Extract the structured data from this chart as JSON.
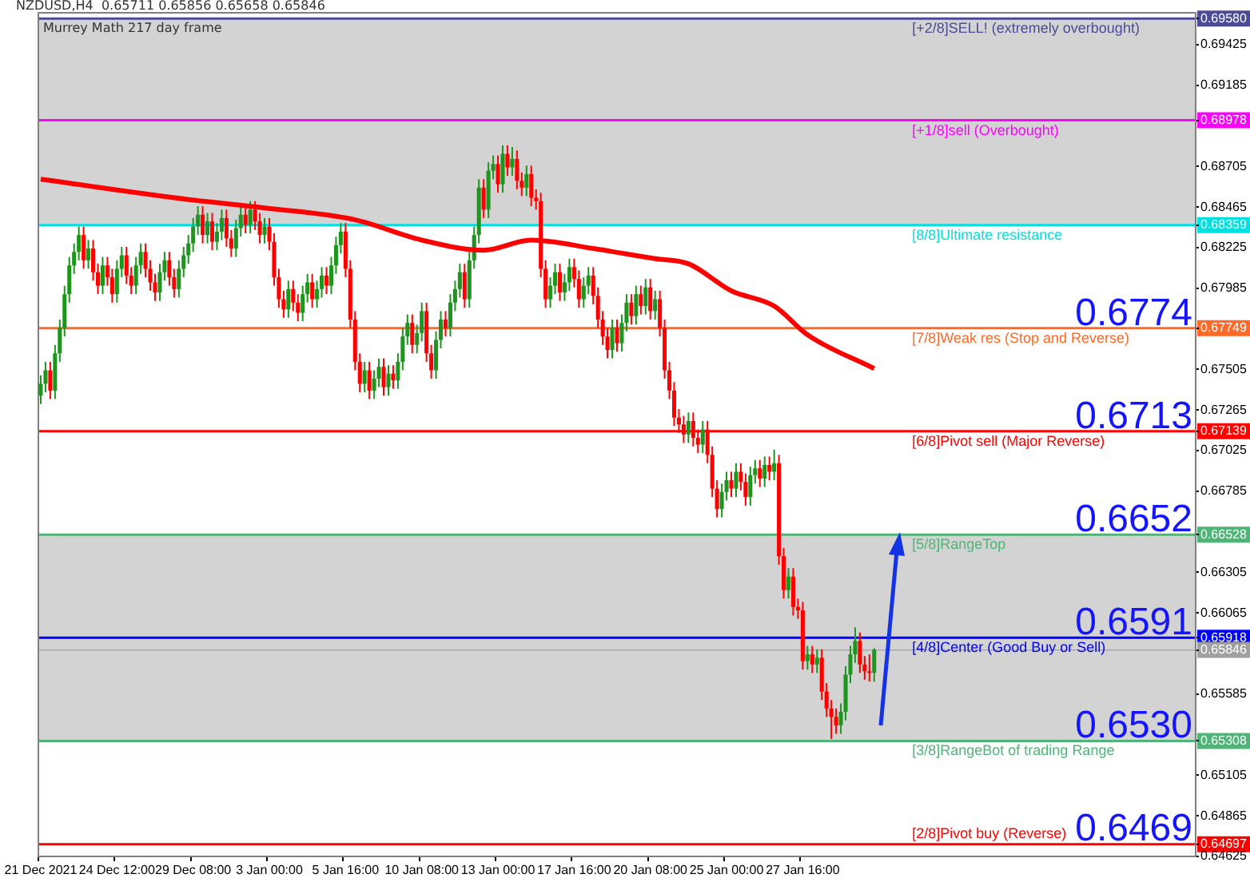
{
  "chart_data": {
    "type": "candlestick",
    "title": "NZDUSD,H4  0.65711 0.65856 0.65658 0.65846",
    "subtitle": "Murrey Math 217 day frame",
    "categories": [
      "21 Dec 2021",
      null,
      null,
      null,
      null,
      null,
      null,
      null,
      null,
      null,
      null,
      null,
      null,
      null,
      null,
      null,
      "24 Dec 12:00",
      null,
      null,
      null,
      null,
      null,
      null,
      null,
      null,
      null,
      null,
      null,
      null,
      null,
      null,
      null,
      "29 Dec 08:00",
      null,
      null,
      null,
      null,
      null,
      null,
      null,
      null,
      null,
      null,
      null,
      null,
      null,
      null,
      null,
      "3 Jan 00:00",
      null,
      null,
      null,
      null,
      null,
      null,
      null,
      null,
      null,
      null,
      null,
      null,
      null,
      null,
      null,
      "5 Jan 16:00",
      null,
      null,
      null,
      null,
      null,
      null,
      null,
      null,
      null,
      null,
      null,
      null,
      null,
      null,
      null,
      "10 Jan 08:00",
      null,
      null,
      null,
      null,
      null,
      null,
      null,
      null,
      null,
      null,
      null,
      null,
      null,
      null,
      null,
      "13 Jan 00:00",
      null,
      null,
      null,
      null,
      null,
      null,
      null,
      null,
      null,
      null,
      null,
      null,
      null,
      null,
      null,
      "17 Jan 16:00",
      null,
      null,
      null,
      null,
      null,
      null,
      null,
      null,
      null,
      null,
      null,
      null,
      null,
      null,
      null,
      "20 Jan 08:00",
      null,
      null,
      null,
      null,
      null,
      null,
      null,
      null,
      null,
      null,
      null,
      null,
      null,
      null,
      null,
      "25 Jan 00:00",
      null,
      null,
      null,
      null,
      null,
      null,
      null,
      null,
      null,
      null,
      null,
      null,
      null,
      null,
      null,
      "27 Jan 16:00",
      null,
      null,
      null,
      null,
      null,
      null,
      null,
      null,
      null,
      null,
      null,
      null,
      null,
      null,
      null,
      null,
      null,
      null,
      null,
      null,
      null,
      null,
      null,
      null,
      null,
      null,
      null,
      null,
      null,
      null,
      null,
      null,
      null,
      null,
      null,
      null,
      null,
      null,
      null,
      null,
      null,
      null,
      null,
      null,
      null,
      null,
      null,
      null,
      null,
      null,
      null,
      null,
      null,
      null,
      null,
      null,
      null,
      null,
      null,
      null,
      null,
      null,
      null,
      null,
      null,
      null,
      null,
      null,
      null,
      null,
      null,
      null,
      null,
      null,
      null,
      null,
      null,
      null,
      null,
      null,
      null,
      null
    ],
    "colors": [
      "#1e961e",
      "#1e961e",
      "#ff0000",
      "#1e961e",
      "#1e961e",
      "#1e961e",
      "#1e961e",
      "#1e961e",
      "#1e961e",
      "#ff0000",
      "#1e961e",
      "#ff0000",
      "#ff0000",
      "#1e961e",
      "#ff0000",
      "#ff0000",
      "#1e961e",
      "#1e961e",
      "#ff0000",
      "#ff0000",
      "#1e961e",
      "#1e961e",
      "#ff0000",
      "#ff0000",
      "#ff0000",
      "#1e961e",
      "#1e961e",
      "#ff0000",
      "#ff0000",
      "#1e961e",
      "#1e961e",
      "#1e961e",
      "#1e961e",
      "#1e961e",
      "#ff0000",
      "#1e961e",
      "#ff0000",
      "#1e961e",
      "#1e961e",
      "#ff0000",
      "#ff0000",
      "#1e961e",
      "#1e961e",
      "#ff0000",
      "#1e961e",
      "#ff0000",
      "#ff0000",
      "#1e961e",
      "#ff0000",
      "#ff0000",
      "#ff0000",
      "#ff0000",
      "#1e961e",
      "#ff0000",
      "#ff0000",
      "#1e961e",
      "#1e961e",
      "#ff0000",
      "#1e961e",
      "#1e961e",
      "#ff0000",
      "#1e961e",
      "#1e961e",
      "#1e961e",
      "#ff0000",
      "#ff0000",
      "#ff0000",
      "#ff0000",
      "#1e961e",
      "#ff0000",
      "#1e961e",
      "#1e961e",
      "#ff0000",
      "#1e961e",
      "#ff0000",
      "#1e961e",
      "#1e961e",
      "#1e961e",
      "#ff0000",
      "#1e961e",
      "#1e961e",
      "#ff0000",
      "#ff0000",
      "#1e961e",
      "#1e961e",
      "#ff0000",
      "#1e961e",
      "#1e961e",
      "#1e961e",
      "#ff0000",
      "#1e961e",
      "#1e961e",
      "#1e961e",
      "#ff0000",
      "#1e961e",
      "#1e961e",
      "#ff0000",
      "#1e961e",
      "#ff0000",
      "#1e961e",
      "#ff0000",
      "#ff0000",
      "#1e961e",
      "#ff0000",
      "#ff0000",
      "#ff0000",
      "#ff0000",
      "#1e961e",
      "#1e961e",
      "#ff0000",
      "#1e961e",
      "#1e961e",
      "#ff0000",
      "#ff0000",
      "#1e961e",
      "#1e961e",
      "#ff0000",
      "#ff0000",
      "#ff0000",
      "#ff0000",
      "#1e961e",
      "#ff0000",
      "#1e961e",
      "#1e961e",
      "#ff0000",
      "#1e961e",
      "#ff0000",
      "#1e961e",
      "#ff0000",
      "#1e961e",
      "#ff0000",
      "#ff0000",
      "#ff0000",
      "#ff0000",
      "#ff0000",
      "#ff0000",
      "#1e961e",
      "#ff0000",
      "#ff0000",
      "#1e961e",
      "#ff0000",
      "#ff0000",
      "#ff0000",
      "#1e961e",
      "#1e961e",
      "#ff0000",
      "#1e961e",
      "#ff0000",
      "#ff0000",
      "#1e961e",
      "#1e961e",
      "#ff0000",
      "#1e961e",
      "#ff0000",
      "#1e961e",
      "#ff0000",
      "#ff0000",
      "#1e961e",
      "#ff0000",
      "#ff0000",
      "#ff0000",
      "#1e961e",
      "#ff0000",
      "#1e961e",
      "#ff0000",
      "#ff0000",
      "#ff0000",
      "#ff0000",
      "#1e961e",
      "#1e961e",
      "#1e961e",
      "#1e961e",
      "#ff0000",
      "#ff0000",
      "#ff0000",
      "#1e961e",
      null,
      null,
      null,
      null,
      null,
      null,
      null,
      null,
      null,
      null,
      null,
      null,
      null,
      null,
      null,
      null,
      null,
      null,
      null,
      null,
      null,
      null,
      null,
      null,
      null,
      null,
      null,
      null,
      null,
      null,
      null,
      null,
      null,
      null,
      null,
      null,
      null,
      null,
      null,
      null,
      null,
      null,
      null,
      null,
      null,
      null,
      null,
      null,
      null,
      null,
      null,
      null,
      null,
      null,
      null,
      null,
      null,
      null,
      null,
      null,
      null,
      null,
      null,
      null,
      null,
      null,
      null
    ],
    "ohlc": [
      [
        0.6735,
        0.6747,
        0.673,
        0.6742
      ],
      [
        0.6742,
        0.6755,
        0.6737,
        0.675
      ],
      [
        0.675,
        0.6755,
        0.6733,
        0.6738
      ],
      [
        0.6738,
        0.6765,
        0.6733,
        0.676
      ],
      [
        0.676,
        0.678,
        0.6755,
        0.6775
      ],
      [
        0.6775,
        0.68,
        0.677,
        0.6795
      ],
      [
        0.6795,
        0.6817,
        0.679,
        0.6812
      ],
      [
        0.6812,
        0.6825,
        0.6807,
        0.682
      ],
      [
        0.682,
        0.6835,
        0.6815,
        0.683
      ],
      [
        0.683,
        0.6835,
        0.681,
        0.6815
      ],
      [
        0.6815,
        0.6827,
        0.681,
        0.6822
      ],
      [
        0.6822,
        0.6827,
        0.6803,
        0.6808
      ],
      [
        0.6808,
        0.6813,
        0.6795,
        0.68
      ],
      [
        0.68,
        0.6817,
        0.6795,
        0.6812
      ],
      [
        0.6812,
        0.6817,
        0.68,
        0.6805
      ],
      [
        0.6805,
        0.681,
        0.679,
        0.6795
      ],
      [
        0.6795,
        0.6815,
        0.679,
        0.681
      ],
      [
        0.681,
        0.6823,
        0.6805,
        0.6818
      ],
      [
        0.6818,
        0.6823,
        0.6801,
        0.6806
      ],
      [
        0.6806,
        0.6811,
        0.6795,
        0.68
      ],
      [
        0.68,
        0.6817,
        0.6795,
        0.6812
      ],
      [
        0.6812,
        0.6825,
        0.6807,
        0.682
      ],
      [
        0.682,
        0.6825,
        0.6805,
        0.681
      ],
      [
        0.681,
        0.6815,
        0.6797,
        0.6802
      ],
      [
        0.6802,
        0.6807,
        0.6791,
        0.6796
      ],
      [
        0.6796,
        0.6813,
        0.6791,
        0.6808
      ],
      [
        0.6808,
        0.682,
        0.6803,
        0.6815
      ],
      [
        0.6815,
        0.682,
        0.68,
        0.6805
      ],
      [
        0.6805,
        0.681,
        0.6793,
        0.6798
      ],
      [
        0.6798,
        0.6815,
        0.6793,
        0.681
      ],
      [
        0.681,
        0.6823,
        0.6805,
        0.6818
      ],
      [
        0.6818,
        0.683,
        0.6813,
        0.6825
      ],
      [
        0.6825,
        0.684,
        0.682,
        0.6835
      ],
      [
        0.6835,
        0.6847,
        0.683,
        0.6842
      ],
      [
        0.6842,
        0.6847,
        0.6825,
        0.683
      ],
      [
        0.683,
        0.6843,
        0.6825,
        0.6838
      ],
      [
        0.6838,
        0.6843,
        0.6821,
        0.6826
      ],
      [
        0.6826,
        0.6837,
        0.6821,
        0.6832
      ],
      [
        0.6832,
        0.6845,
        0.6827,
        0.684
      ],
      [
        0.684,
        0.6845,
        0.6823,
        0.6828
      ],
      [
        0.6828,
        0.6833,
        0.6817,
        0.6822
      ],
      [
        0.6822,
        0.6839,
        0.6817,
        0.6834
      ],
      [
        0.6834,
        0.6847,
        0.6829,
        0.6842
      ],
      [
        0.6842,
        0.6847,
        0.6831,
        0.6836
      ],
      [
        0.6836,
        0.685,
        0.6831,
        0.6845
      ],
      [
        0.6845,
        0.685,
        0.6833,
        0.6838
      ],
      [
        0.6838,
        0.6843,
        0.6825,
        0.683
      ],
      [
        0.683,
        0.684,
        0.6825,
        0.6835
      ],
      [
        0.6835,
        0.684,
        0.6821,
        0.6826
      ],
      [
        0.6826,
        0.6831,
        0.68,
        0.6805
      ],
      [
        0.6805,
        0.681,
        0.6787,
        0.6792
      ],
      [
        0.6792,
        0.6797,
        0.6781,
        0.6786
      ],
      [
        0.6786,
        0.6803,
        0.6781,
        0.6798
      ],
      [
        0.6798,
        0.6803,
        0.6785,
        0.679
      ],
      [
        0.679,
        0.6795,
        0.6779,
        0.6784
      ],
      [
        0.6784,
        0.68,
        0.6779,
        0.6795
      ],
      [
        0.6795,
        0.6807,
        0.679,
        0.6802
      ],
      [
        0.6802,
        0.6807,
        0.6787,
        0.6792
      ],
      [
        0.6792,
        0.6803,
        0.6787,
        0.6798
      ],
      [
        0.6798,
        0.6811,
        0.6793,
        0.6806
      ],
      [
        0.6806,
        0.6811,
        0.6795,
        0.68
      ],
      [
        0.68,
        0.6817,
        0.6795,
        0.6812
      ],
      [
        0.6812,
        0.6829,
        0.6807,
        0.6824
      ],
      [
        0.6824,
        0.6837,
        0.6819,
        0.6832
      ],
      [
        0.6832,
        0.6837,
        0.6805,
        0.681
      ],
      [
        0.681,
        0.6815,
        0.6775,
        0.678
      ],
      [
        0.678,
        0.6785,
        0.675,
        0.6755
      ],
      [
        0.6755,
        0.676,
        0.6737,
        0.6742
      ],
      [
        0.6742,
        0.6755,
        0.6737,
        0.675
      ],
      [
        0.675,
        0.6755,
        0.6733,
        0.6738
      ],
      [
        0.6738,
        0.675,
        0.6733,
        0.6745
      ],
      [
        0.6745,
        0.6757,
        0.674,
        0.6752
      ],
      [
        0.6752,
        0.6757,
        0.6735,
        0.674
      ],
      [
        0.674,
        0.6753,
        0.6735,
        0.6748
      ],
      [
        0.6748,
        0.6753,
        0.6739,
        0.6744
      ],
      [
        0.6744,
        0.676,
        0.6739,
        0.6755
      ],
      [
        0.6755,
        0.6775,
        0.675,
        0.677
      ],
      [
        0.677,
        0.6783,
        0.6765,
        0.6778
      ],
      [
        0.6778,
        0.6783,
        0.676,
        0.6765
      ],
      [
        0.6765,
        0.6777,
        0.676,
        0.6772
      ],
      [
        0.6772,
        0.679,
        0.6767,
        0.6785
      ],
      [
        0.6785,
        0.679,
        0.6755,
        0.676
      ],
      [
        0.676,
        0.6765,
        0.6745,
        0.675
      ],
      [
        0.675,
        0.6773,
        0.6745,
        0.6768
      ],
      [
        0.6768,
        0.6785,
        0.6763,
        0.678
      ],
      [
        0.678,
        0.6785,
        0.677,
        0.6775
      ],
      [
        0.6775,
        0.6795,
        0.677,
        0.679
      ],
      [
        0.679,
        0.6803,
        0.6785,
        0.6798
      ],
      [
        0.6798,
        0.6813,
        0.6793,
        0.6808
      ],
      [
        0.6808,
        0.6813,
        0.6787,
        0.6792
      ],
      [
        0.6792,
        0.682,
        0.6787,
        0.6815
      ],
      [
        0.6815,
        0.6835,
        0.681,
        0.683
      ],
      [
        0.683,
        0.6863,
        0.6825,
        0.6858
      ],
      [
        0.6858,
        0.6863,
        0.684,
        0.6845
      ],
      [
        0.6845,
        0.6873,
        0.684,
        0.6868
      ],
      [
        0.6868,
        0.6877,
        0.6863,
        0.6872
      ],
      [
        0.6872,
        0.6877,
        0.6855,
        0.686
      ],
      [
        0.686,
        0.6883,
        0.6855,
        0.6878
      ],
      [
        0.6878,
        0.6883,
        0.6865,
        0.687
      ],
      [
        0.687,
        0.6882,
        0.6865,
        0.6875
      ],
      [
        0.6875,
        0.688,
        0.6857,
        0.6862
      ],
      [
        0.6862,
        0.6867,
        0.6853,
        0.6858
      ],
      [
        0.6858,
        0.6871,
        0.6853,
        0.6866
      ],
      [
        0.6866,
        0.6871,
        0.6847,
        0.6852
      ],
      [
        0.6852,
        0.6857,
        0.6845,
        0.685
      ],
      [
        0.685,
        0.6855,
        0.6805,
        0.681
      ],
      [
        0.681,
        0.6815,
        0.6787,
        0.6792
      ],
      [
        0.6792,
        0.6805,
        0.6787,
        0.68
      ],
      [
        0.68,
        0.6813,
        0.6795,
        0.6808
      ],
      [
        0.6808,
        0.6813,
        0.6791,
        0.6796
      ],
      [
        0.6796,
        0.6807,
        0.6791,
        0.6802
      ],
      [
        0.6802,
        0.6816,
        0.6797,
        0.6811
      ],
      [
        0.6811,
        0.6816,
        0.6799,
        0.6804
      ],
      [
        0.6804,
        0.6809,
        0.6787,
        0.6792
      ],
      [
        0.6792,
        0.6805,
        0.6787,
        0.68
      ],
      [
        0.68,
        0.6811,
        0.6795,
        0.6806
      ],
      [
        0.6806,
        0.6811,
        0.6789,
        0.6794
      ],
      [
        0.6794,
        0.6799,
        0.6775,
        0.678
      ],
      [
        0.678,
        0.6785,
        0.6765,
        0.677
      ],
      [
        0.677,
        0.6775,
        0.6757,
        0.6762
      ],
      [
        0.6762,
        0.678,
        0.6757,
        0.6775
      ],
      [
        0.6775,
        0.678,
        0.6761,
        0.6766
      ],
      [
        0.6766,
        0.6783,
        0.6761,
        0.6778
      ],
      [
        0.6778,
        0.6795,
        0.6773,
        0.679
      ],
      [
        0.679,
        0.6795,
        0.6777,
        0.6782
      ],
      [
        0.6782,
        0.68,
        0.6777,
        0.6795
      ],
      [
        0.6795,
        0.68,
        0.6783,
        0.6788
      ],
      [
        0.6788,
        0.6804,
        0.6783,
        0.6799
      ],
      [
        0.6799,
        0.6804,
        0.678,
        0.6785
      ],
      [
        0.6785,
        0.6797,
        0.678,
        0.6792
      ],
      [
        0.6792,
        0.6797,
        0.677,
        0.6775
      ],
      [
        0.6775,
        0.678,
        0.6745,
        0.675
      ],
      [
        0.675,
        0.6755,
        0.6733,
        0.6738
      ],
      [
        0.6738,
        0.6743,
        0.6717,
        0.6722
      ],
      [
        0.6722,
        0.6727,
        0.6713,
        0.6718
      ],
      [
        0.6718,
        0.6723,
        0.6707,
        0.6712
      ],
      [
        0.6712,
        0.6725,
        0.6707,
        0.672
      ],
      [
        0.672,
        0.6725,
        0.6705,
        0.671
      ],
      [
        0.671,
        0.6715,
        0.6701,
        0.6706
      ],
      [
        0.6706,
        0.672,
        0.6701,
        0.6715
      ],
      [
        0.6715,
        0.672,
        0.6695,
        0.67
      ],
      [
        0.67,
        0.6705,
        0.6675,
        0.668
      ],
      [
        0.668,
        0.6685,
        0.6663,
        0.6668
      ],
      [
        0.6668,
        0.6683,
        0.6663,
        0.6678
      ],
      [
        0.6678,
        0.669,
        0.6673,
        0.6685
      ],
      [
        0.6685,
        0.669,
        0.6675,
        0.668
      ],
      [
        0.668,
        0.6695,
        0.6675,
        0.669
      ],
      [
        0.669,
        0.6695,
        0.6679,
        0.6684
      ],
      [
        0.6684,
        0.6689,
        0.667,
        0.6675
      ],
      [
        0.6675,
        0.6693,
        0.667,
        0.6688
      ],
      [
        0.6688,
        0.6697,
        0.6683,
        0.6692
      ],
      [
        0.6692,
        0.6697,
        0.6681,
        0.6686
      ],
      [
        0.6686,
        0.6699,
        0.6681,
        0.6694
      ],
      [
        0.6694,
        0.6699,
        0.6685,
        0.669
      ],
      [
        0.669,
        0.6703,
        0.6685,
        0.6695
      ],
      [
        0.6695,
        0.67,
        0.6635,
        0.664
      ],
      [
        0.664,
        0.6645,
        0.6615,
        0.662
      ],
      [
        0.662,
        0.6633,
        0.6615,
        0.6628
      ],
      [
        0.6628,
        0.6633,
        0.6605,
        0.661
      ],
      [
        0.661,
        0.6615,
        0.6603,
        0.6608
      ],
      [
        0.6608,
        0.6613,
        0.6573,
        0.6578
      ],
      [
        0.6578,
        0.6587,
        0.6573,
        0.6582
      ],
      [
        0.6582,
        0.6587,
        0.6571,
        0.6576
      ],
      [
        0.6576,
        0.6585,
        0.6571,
        0.658
      ],
      [
        0.658,
        0.6585,
        0.6555,
        0.656
      ],
      [
        0.656,
        0.6565,
        0.6545,
        0.655
      ],
      [
        0.655,
        0.6555,
        0.6532,
        0.6545
      ],
      [
        0.6545,
        0.655,
        0.6535,
        0.654
      ],
      [
        0.654,
        0.6553,
        0.6535,
        0.6548
      ],
      [
        0.6548,
        0.6575,
        0.6543,
        0.657
      ],
      [
        0.657,
        0.6587,
        0.6565,
        0.6582
      ],
      [
        0.6582,
        0.6598,
        0.6577,
        0.659
      ],
      [
        0.659,
        0.6595,
        0.6571,
        0.6576
      ],
      [
        0.6576,
        0.6581,
        0.6567,
        0.6572
      ],
      [
        0.6572,
        0.6582,
        0.6566,
        0.6571
      ],
      [
        0.65711,
        0.65856,
        0.65658,
        0.65846
      ],
      null,
      null,
      null,
      null,
      null,
      null,
      null,
      null,
      null,
      null,
      null,
      null,
      null,
      null,
      null,
      null,
      null,
      null,
      null,
      null,
      null,
      null,
      null,
      null,
      null,
      null,
      null,
      null,
      null,
      null,
      null,
      null,
      null,
      null,
      null,
      null,
      null,
      null,
      null,
      null,
      null,
      null,
      null,
      null,
      null,
      null,
      null,
      null,
      null,
      null,
      null,
      null,
      null,
      null,
      null,
      null,
      null,
      null,
      null,
      null,
      null,
      null,
      null,
      null,
      null,
      null,
      null
    ],
    "series": [
      {
        "type": "line",
        "color": "#ff0000",
        "values": [
          0.6863,
          null,
          null,
          null,
          null,
          null,
          null,
          null,
          null,
          null,
          null,
          null,
          null,
          null,
          null,
          null,
          null,
          null,
          null,
          null,
          null,
          null,
          null,
          null,
          null,
          null,
          null,
          null,
          null,
          null,
          null,
          0.6851,
          null,
          null,
          null,
          null,
          null,
          null,
          null,
          null,
          null,
          null,
          null,
          null,
          null,
          null,
          null,
          0.6846,
          null,
          null,
          null,
          null,
          null,
          null,
          null,
          null,
          null,
          null,
          null,
          null,
          null,
          null,
          null,
          null,
          null,
          null,
          0.6839,
          null,
          null,
          null,
          null,
          null,
          null,
          null,
          null,
          null,
          null,
          null,
          null,
          null,
          0.6827,
          null,
          null,
          null,
          null,
          null,
          null,
          null,
          null,
          null,
          null,
          null,
          null,
          0.6821,
          null,
          null,
          null,
          null,
          null,
          null,
          null,
          null,
          null,
          0.6827,
          null,
          null,
          null,
          null,
          null,
          null,
          null,
          null,
          null,
          null,
          null,
          null,
          0.6822,
          null,
          null,
          null,
          null,
          null,
          null,
          null,
          null,
          null,
          null,
          null,
          null,
          0.6816,
          null,
          null,
          null,
          null,
          null,
          null,
          0.6813,
          null,
          null,
          null,
          null,
          null,
          null,
          null,
          null,
          0.6797,
          null,
          null,
          null,
          null,
          null,
          null,
          null,
          null,
          0.6788,
          null,
          null,
          null,
          null,
          null,
          null,
          0.6771,
          null,
          null,
          null,
          null,
          null,
          null,
          null,
          null,
          null,
          null,
          null,
          null,
          null,
          0.6751,
          null,
          null,
          null,
          null,
          null,
          null,
          null,
          null,
          null,
          null,
          null,
          null,
          null,
          null,
          null,
          null,
          null,
          null,
          null,
          null,
          null,
          null,
          null,
          null,
          null,
          null,
          null,
          null,
          null,
          null,
          null,
          null,
          null,
          null,
          null,
          null,
          null,
          null,
          null,
          null,
          null,
          null,
          null,
          null,
          null,
          null,
          null,
          null,
          null,
          null,
          null,
          null,
          null,
          null,
          null,
          null,
          null,
          null,
          null,
          null,
          null,
          null,
          null,
          null,
          null,
          null,
          null
        ]
      }
    ],
    "ylim": [
      0.64625,
      0.69614
    ],
    "yticks": [
      0.69425,
      0.69185,
      0.68705,
      0.68465,
      0.68225,
      0.67985,
      0.67505,
      0.67265,
      0.67025,
      0.66785,
      0.66305,
      0.66065,
      0.65585,
      0.65105,
      0.64865,
      0.64625,
      {
        "value": 0.6958,
        "label": "0.69580"
      },
      {
        "value": 0.68978,
        "label": "0.68978"
      },
      {
        "value": 0.68359,
        "label": "0.68359"
      },
      {
        "value": 0.67749,
        "label": "0.67749"
      },
      {
        "value": 0.67139,
        "label": "0.67139"
      },
      {
        "value": 0.66528,
        "label": "0.66528"
      },
      {
        "value": 0.65918,
        "label": "0.65918"
      },
      {
        "value": 0.65846,
        "label": "0.65846"
      },
      {
        "value": 0.65308,
        "label": "0.65308"
      },
      {
        "value": 0.64697,
        "label": "0.64697"
      }
    ],
    "bands": [
      {
        "axis": "y",
        "from": 0.68359,
        "to": 0.6958,
        "color": "#d3d3d3"
      },
      {
        "axis": "y",
        "from": 0.65308,
        "to": 0.66528,
        "color": "#d3d3d3"
      }
    ],
    "ref_lines": [
      {
        "axis": "y",
        "value": 0.6958,
        "label": "[+2/8]SELL! (extremely overbought)",
        "color": "#4b4b96"
      },
      {
        "axis": "y",
        "value": 0.68978,
        "label": "[+1/8]sell (Overbought)",
        "color": "#ff00ff"
      },
      {
        "axis": "y",
        "value": 0.68359,
        "label": "[8/8]Ultimate resistance",
        "color": "#00e0e0"
      },
      {
        "axis": "y",
        "value": 0.67749,
        "label": "[7/8]Weak res (Stop and Reverse)",
        "color": "#ff6a28"
      },
      {
        "axis": "y",
        "value": 0.67139,
        "label": "[6/8]Pivot sell (Major Reverse)",
        "color": "#ff0000"
      },
      {
        "axis": "y",
        "value": 0.66528,
        "label": "[5/8]RangeTop",
        "color": "#50b478"
      },
      {
        "axis": "y",
        "value": 0.65918,
        "label": "[4/8]Center (Good Buy or Sell)",
        "color": "#0000ff"
      },
      {
        "axis": "y",
        "value": 0.65846,
        "color": "#a0a0a0"
      },
      {
        "axis": "y",
        "value": 0.65308,
        "label": "[3/8]RangeBot of trading Range",
        "color": "#50b478"
      },
      {
        "axis": "y",
        "value": 0.64697,
        "label": "[2/8]Pivot buy (Reverse)",
        "color": "#ff0000"
      }
    ],
    "annotations": [
      {
        "text": "0.6774",
        "y": 0.6774
      },
      {
        "text": "0.6713",
        "y": 0.6713
      },
      {
        "text": "0.6652",
        "y": 0.6652
      },
      {
        "text": "0.6591",
        "y": 0.6591
      },
      {
        "text": "0.6530",
        "y": 0.653
      },
      {
        "text": "0.6469",
        "y": 0.6469
      }
    ]
  }
}
